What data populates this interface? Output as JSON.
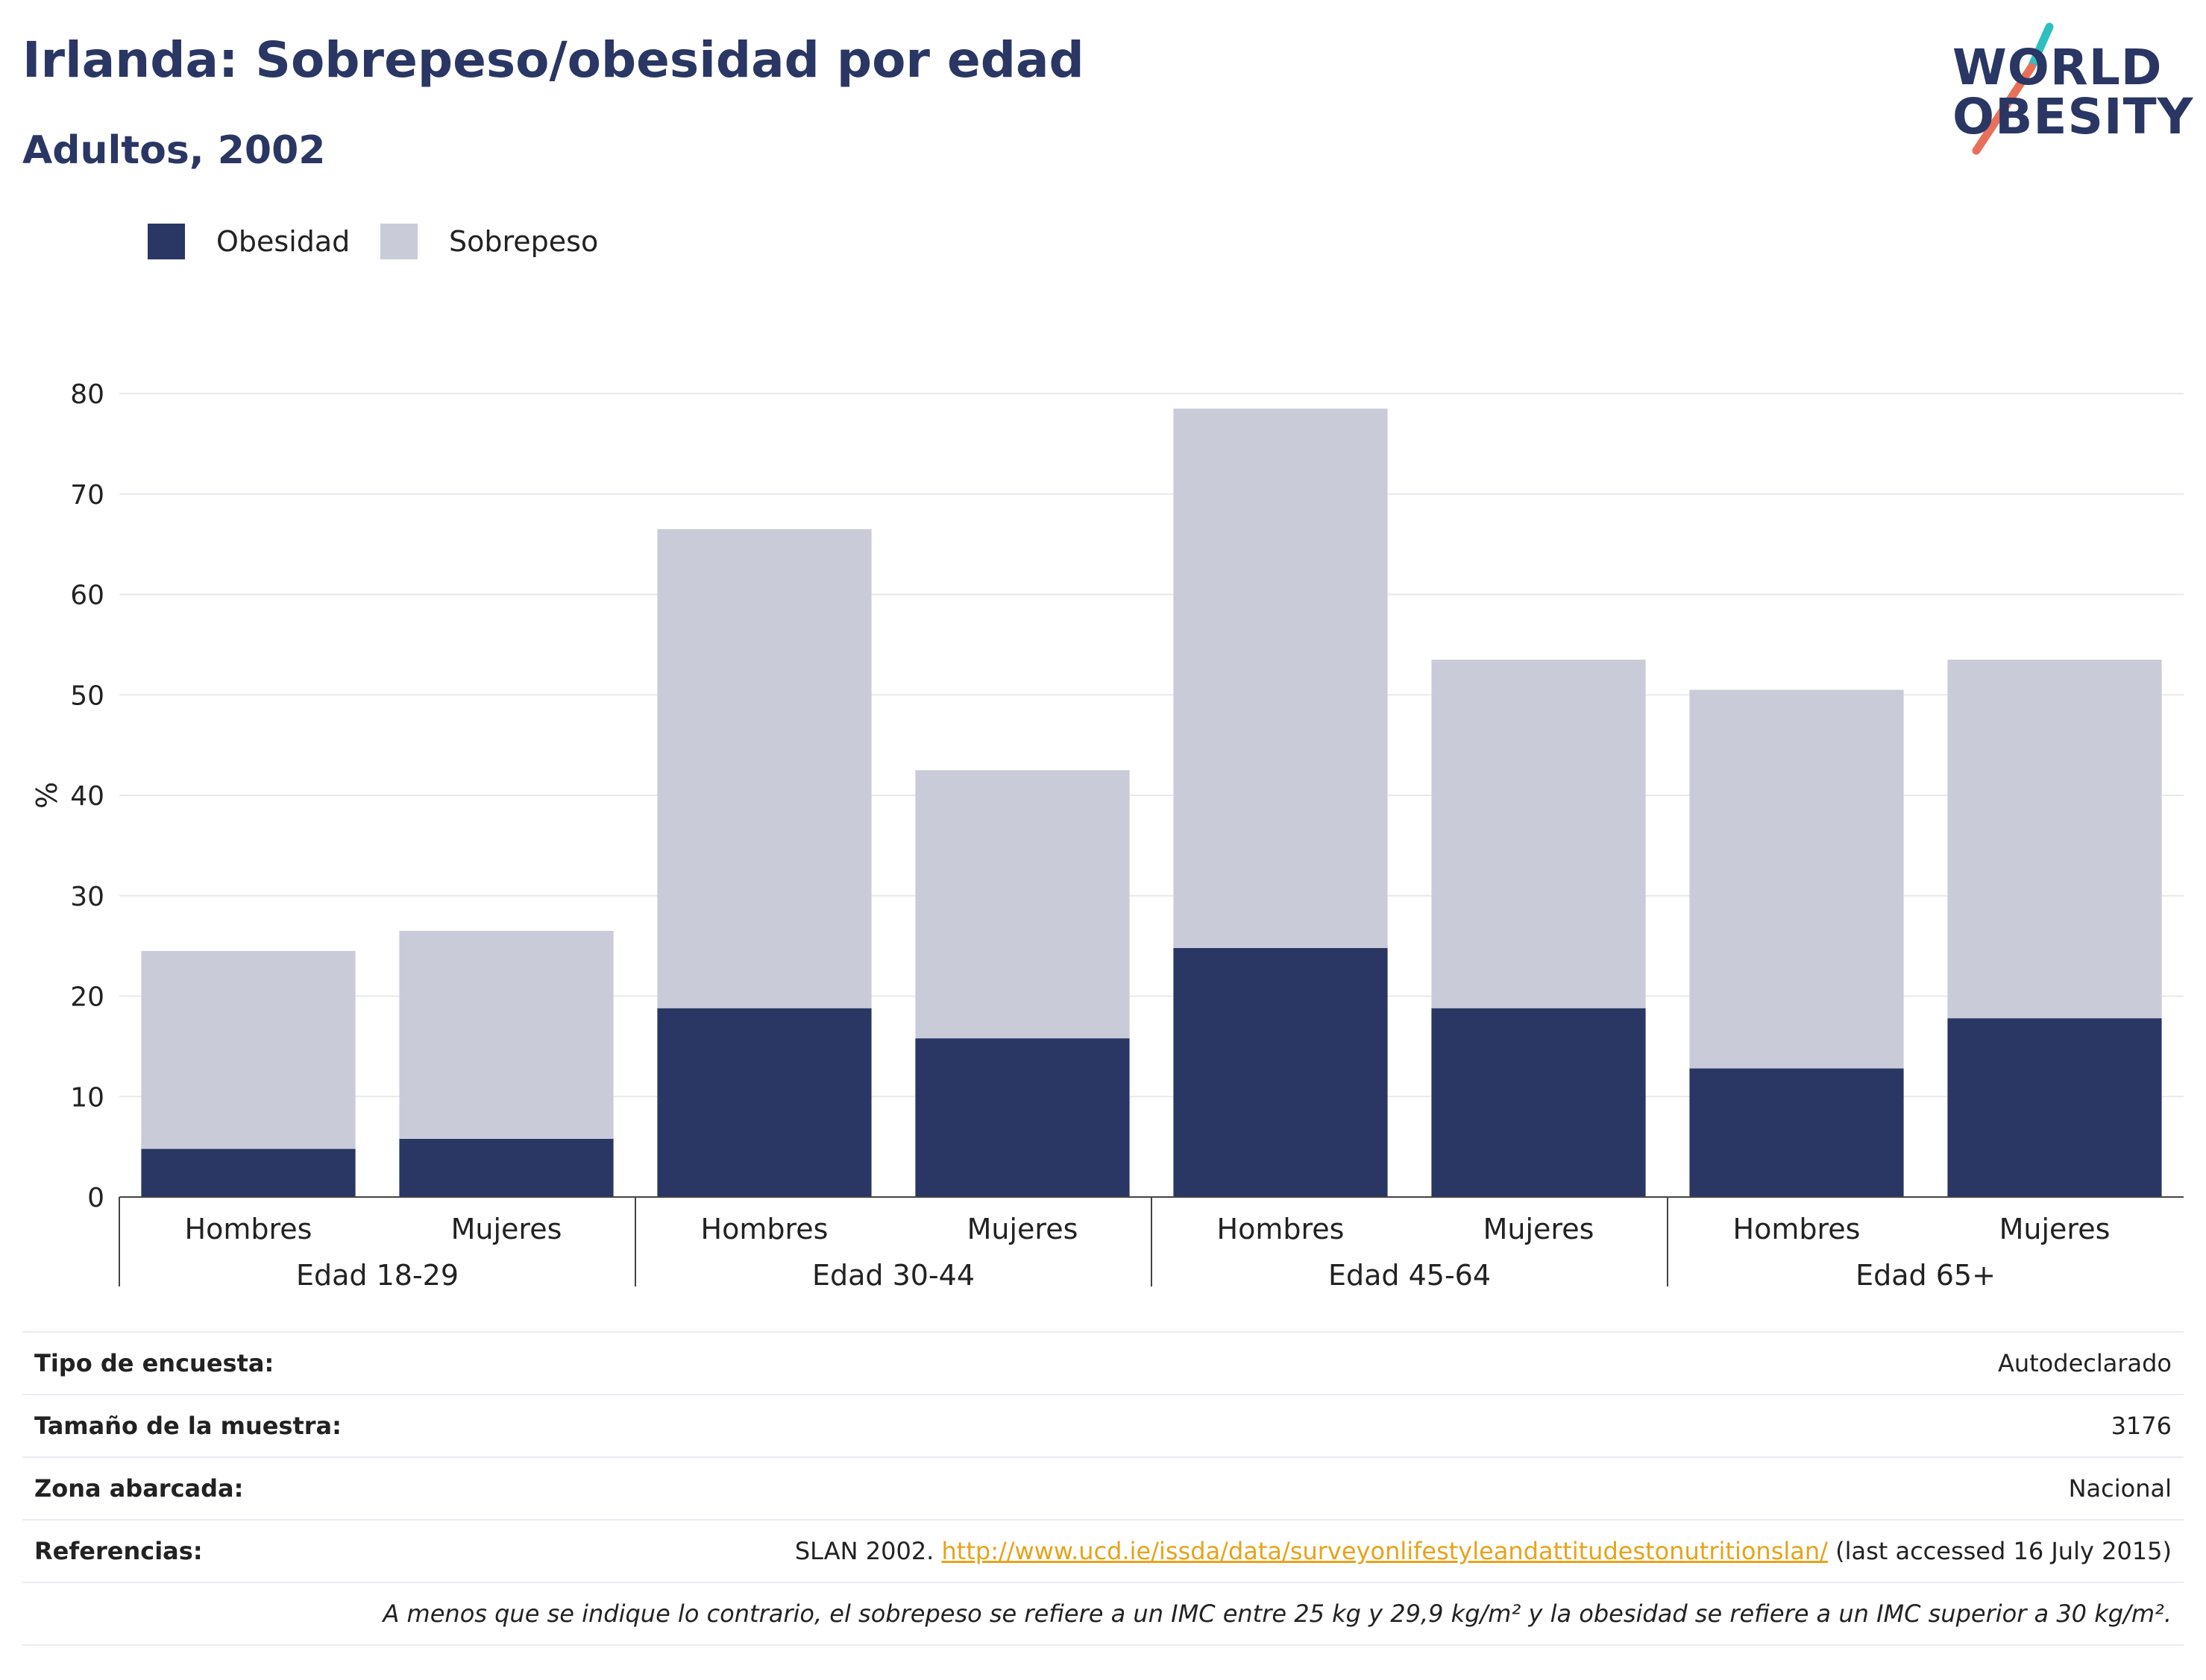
{
  "header": {
    "title": "Irlanda: Sobrepeso/obesidad por edad",
    "subtitle": "Adultos, 2002"
  },
  "logo": {
    "line1": "WORLD",
    "line2": "OBESITY",
    "slash_colors": [
      "#2ebfbf",
      "#e8705a"
    ]
  },
  "legend": {
    "items": [
      {
        "label": "Obesidad",
        "color": "#2a3663"
      },
      {
        "label": "Sobrepeso",
        "color": "#c9ccd8"
      }
    ]
  },
  "chart_data": {
    "type": "bar",
    "stacked": true,
    "ylabel": "%",
    "ylim": [
      0,
      80
    ],
    "yticks": [
      0,
      10,
      20,
      30,
      40,
      50,
      60,
      70,
      80
    ],
    "grid": true,
    "legend_position": "top-left",
    "categories": [
      "Hombres",
      "Mujeres",
      "Hombres",
      "Mujeres",
      "Hombres",
      "Mujeres",
      "Hombres",
      "Mujeres"
    ],
    "groups": [
      {
        "label": "Edad 18-29",
        "span": 2
      },
      {
        "label": "Edad 30-44",
        "span": 2
      },
      {
        "label": "Edad 45-64",
        "span": 2
      },
      {
        "label": "Edad 65+",
        "span": 2
      }
    ],
    "series": [
      {
        "name": "Obesidad",
        "color": "#2a3663",
        "values": [
          4.8,
          5.8,
          18.8,
          15.8,
          24.8,
          18.8,
          12.8,
          17.8
        ]
      },
      {
        "name": "Sobrepeso",
        "color": "#c9ccd8",
        "values": [
          19.7,
          20.7,
          47.7,
          26.7,
          53.7,
          34.7,
          37.7,
          35.7
        ]
      }
    ]
  },
  "info": {
    "rows": [
      {
        "key": "Tipo de encuesta:",
        "value": "Autodeclarado"
      },
      {
        "key": "Tamaño de la muestra:",
        "value": "3176"
      },
      {
        "key": "Zona abarcada:",
        "value": "Nacional"
      }
    ],
    "references": {
      "key": "Referencias:",
      "prefix": "SLAN 2002. ",
      "link": "http://www.ucd.ie/issda/data/surveyonlifestyleandattitudestonutritionslan/",
      "suffix": " (last accessed 16 July 2015)"
    },
    "note": "A menos que se indique lo contrario, el sobrepeso se refiere a un IMC entre 25 kg y 29,9 kg/m² y la obesidad se refiere a un IMC superior a 30 kg/m²."
  }
}
